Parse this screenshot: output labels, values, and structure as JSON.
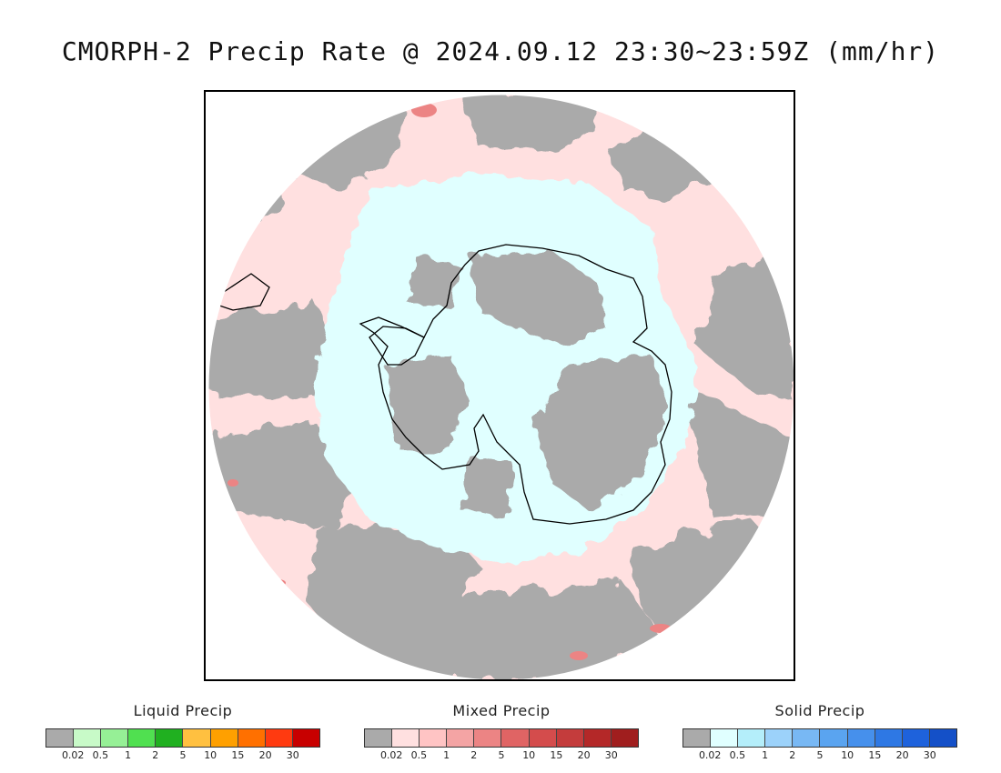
{
  "title": "CMORPH-2 Precip Rate @ 2024.09.12 23:30~23:59Z (mm/hr)",
  "map": {
    "projection": "south-polar-stereographic",
    "colors": {
      "no_precip_background": "#ffffff",
      "trace": "#aaaaaa",
      "mixed_light": "#ffe0e0",
      "solid_light": "#e0ffff",
      "coastline": "#000000"
    }
  },
  "legends": [
    {
      "title": "Liquid Precip",
      "colors": [
        "#aaaaaa",
        "#c8fac8",
        "#96f096",
        "#50e050",
        "#20b020",
        "#ffc040",
        "#ffa000",
        "#ff7000",
        "#ff3a10",
        "#c80000"
      ],
      "ticks": [
        "0.02",
        "0.5",
        "1",
        "2",
        "5",
        "10",
        "15",
        "20",
        "30"
      ]
    },
    {
      "title": "Mixed Precip",
      "colors": [
        "#aaaaaa",
        "#ffe0e0",
        "#ffc4c4",
        "#f4a4a4",
        "#ec8484",
        "#e06464",
        "#d44c4c",
        "#c43c3c",
        "#b42828",
        "#a01e1e"
      ],
      "ticks": [
        "0.02",
        "0.5",
        "1",
        "2",
        "5",
        "10",
        "15",
        "20",
        "30"
      ]
    },
    {
      "title": "Solid Precip",
      "colors": [
        "#aaaaaa",
        "#e0ffff",
        "#b4eefa",
        "#9cd2fa",
        "#78b8f4",
        "#5aa4f0",
        "#4690ec",
        "#2e78e4",
        "#1e62dc",
        "#1450c8"
      ],
      "ticks": [
        "0.02",
        "0.5",
        "1",
        "2",
        "5",
        "10",
        "15",
        "20",
        "30"
      ]
    }
  ]
}
